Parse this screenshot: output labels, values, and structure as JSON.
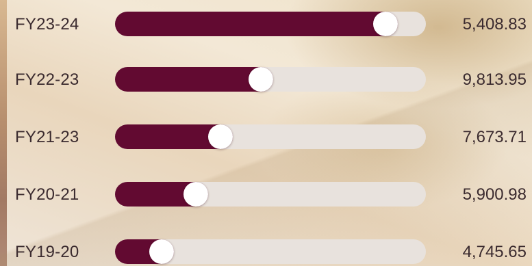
{
  "rows": [
    {
      "label": "FY23-24",
      "value": "5,408.83",
      "progress": 0.87
    },
    {
      "label": "FY22-23",
      "value": "9,813.95",
      "progress": 0.47
    },
    {
      "label": "FY21-23",
      "value": "7,673.71",
      "progress": 0.34
    },
    {
      "label": "FY20-21",
      "value": "5,900.98",
      "progress": 0.26
    },
    {
      "label": "FY19-20",
      "value": "4,745.65",
      "progress": 0.15
    }
  ],
  "colors": {
    "fill": "#620a31",
    "track": "#e8e2dd",
    "knob": "#ffffff",
    "text": "#3b2b2f"
  }
}
